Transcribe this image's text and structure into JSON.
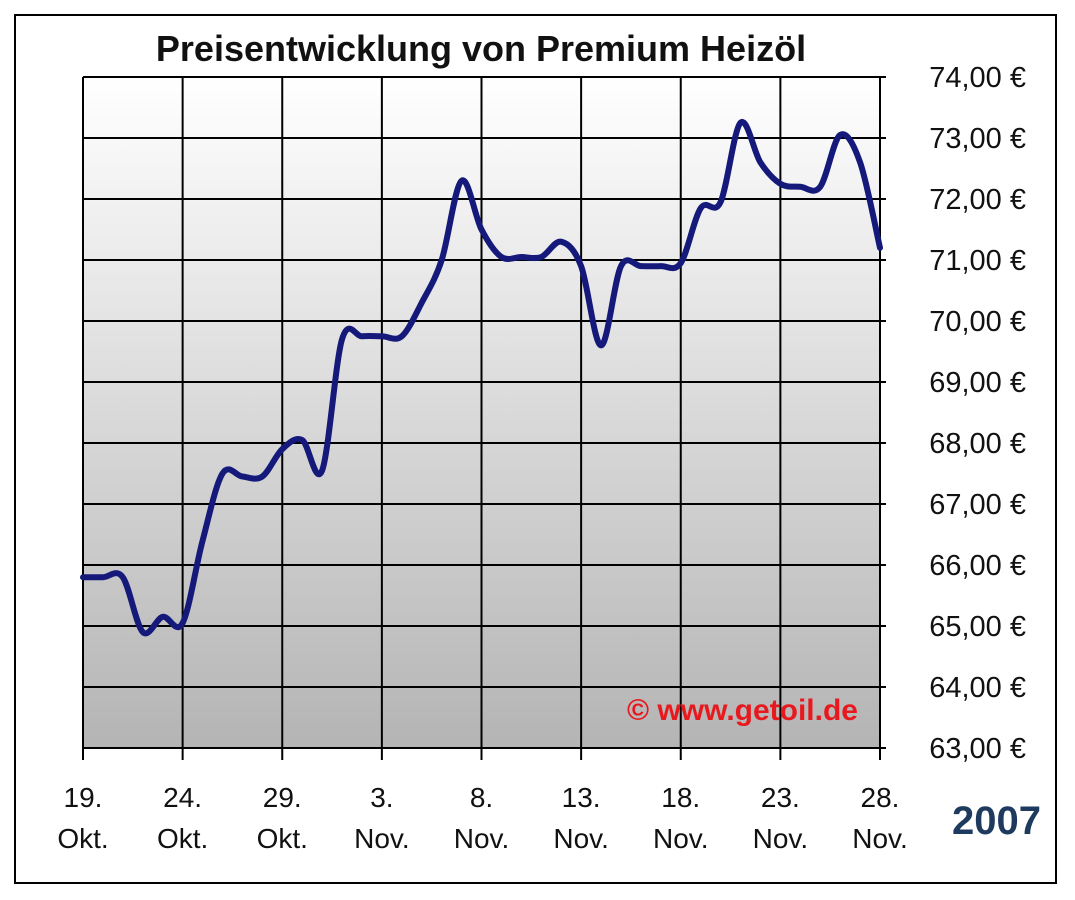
{
  "chart_data": {
    "type": "line",
    "title": "Preisentwicklung von Premium Heizöl",
    "xlabel": "",
    "ylabel": "",
    "year": "2007",
    "watermark": "© www.getoil.de",
    "ylim": [
      63,
      74
    ],
    "y_ticks": [
      "63,00 €",
      "64,00 €",
      "65,00 €",
      "66,00 €",
      "67,00 €",
      "68,00 €",
      "69,00 €",
      "70,00 €",
      "71,00 €",
      "72,00 €",
      "73,00 €",
      "74,00 €"
    ],
    "x_ticks": [
      {
        "x": 0,
        "day": "19.",
        "month": "Okt."
      },
      {
        "x": 5,
        "day": "24.",
        "month": "Okt."
      },
      {
        "x": 10,
        "day": "29.",
        "month": "Okt."
      },
      {
        "x": 15,
        "day": "3.",
        "month": "Nov."
      },
      {
        "x": 20,
        "day": "8.",
        "month": "Nov."
      },
      {
        "x": 25,
        "day": "13.",
        "month": "Nov."
      },
      {
        "x": 30,
        "day": "18.",
        "month": "Nov."
      },
      {
        "x": 35,
        "day": "23.",
        "month": "Nov."
      },
      {
        "x": 40,
        "day": "28.",
        "month": "Nov."
      }
    ],
    "x_range": [
      0,
      40
    ],
    "grid": true,
    "series": [
      {
        "x": [
          0,
          1,
          2,
          3,
          4,
          5,
          6,
          7,
          8,
          9,
          10,
          11,
          12,
          13,
          14,
          15,
          16,
          17,
          18,
          19,
          20,
          21,
          22,
          23,
          24,
          25,
          26,
          27,
          28,
          29,
          30,
          31,
          32,
          33,
          34,
          35,
          36,
          37,
          38,
          39,
          40
        ],
        "values": [
          65.8,
          65.8,
          65.8,
          64.9,
          65.15,
          65.05,
          66.4,
          67.5,
          67.45,
          67.45,
          67.9,
          68.05,
          67.55,
          69.7,
          69.75,
          69.75,
          69.75,
          70.3,
          71.0,
          72.3,
          71.5,
          71.05,
          71.05,
          71.05,
          71.3,
          70.9,
          69.6,
          70.9,
          70.9,
          70.9,
          70.95,
          71.85,
          71.95,
          73.25,
          72.6,
          72.25,
          72.2,
          72.2,
          73.05,
          72.6,
          71.2
        ],
        "color": "#15197a"
      }
    ],
    "colors": {
      "line": "#15197a",
      "watermark": "#e8191e",
      "year": "#1f3a5f",
      "grid": "#000000",
      "plot_top": "#ffffff",
      "plot_bottom": "#b4b4b4"
    }
  }
}
